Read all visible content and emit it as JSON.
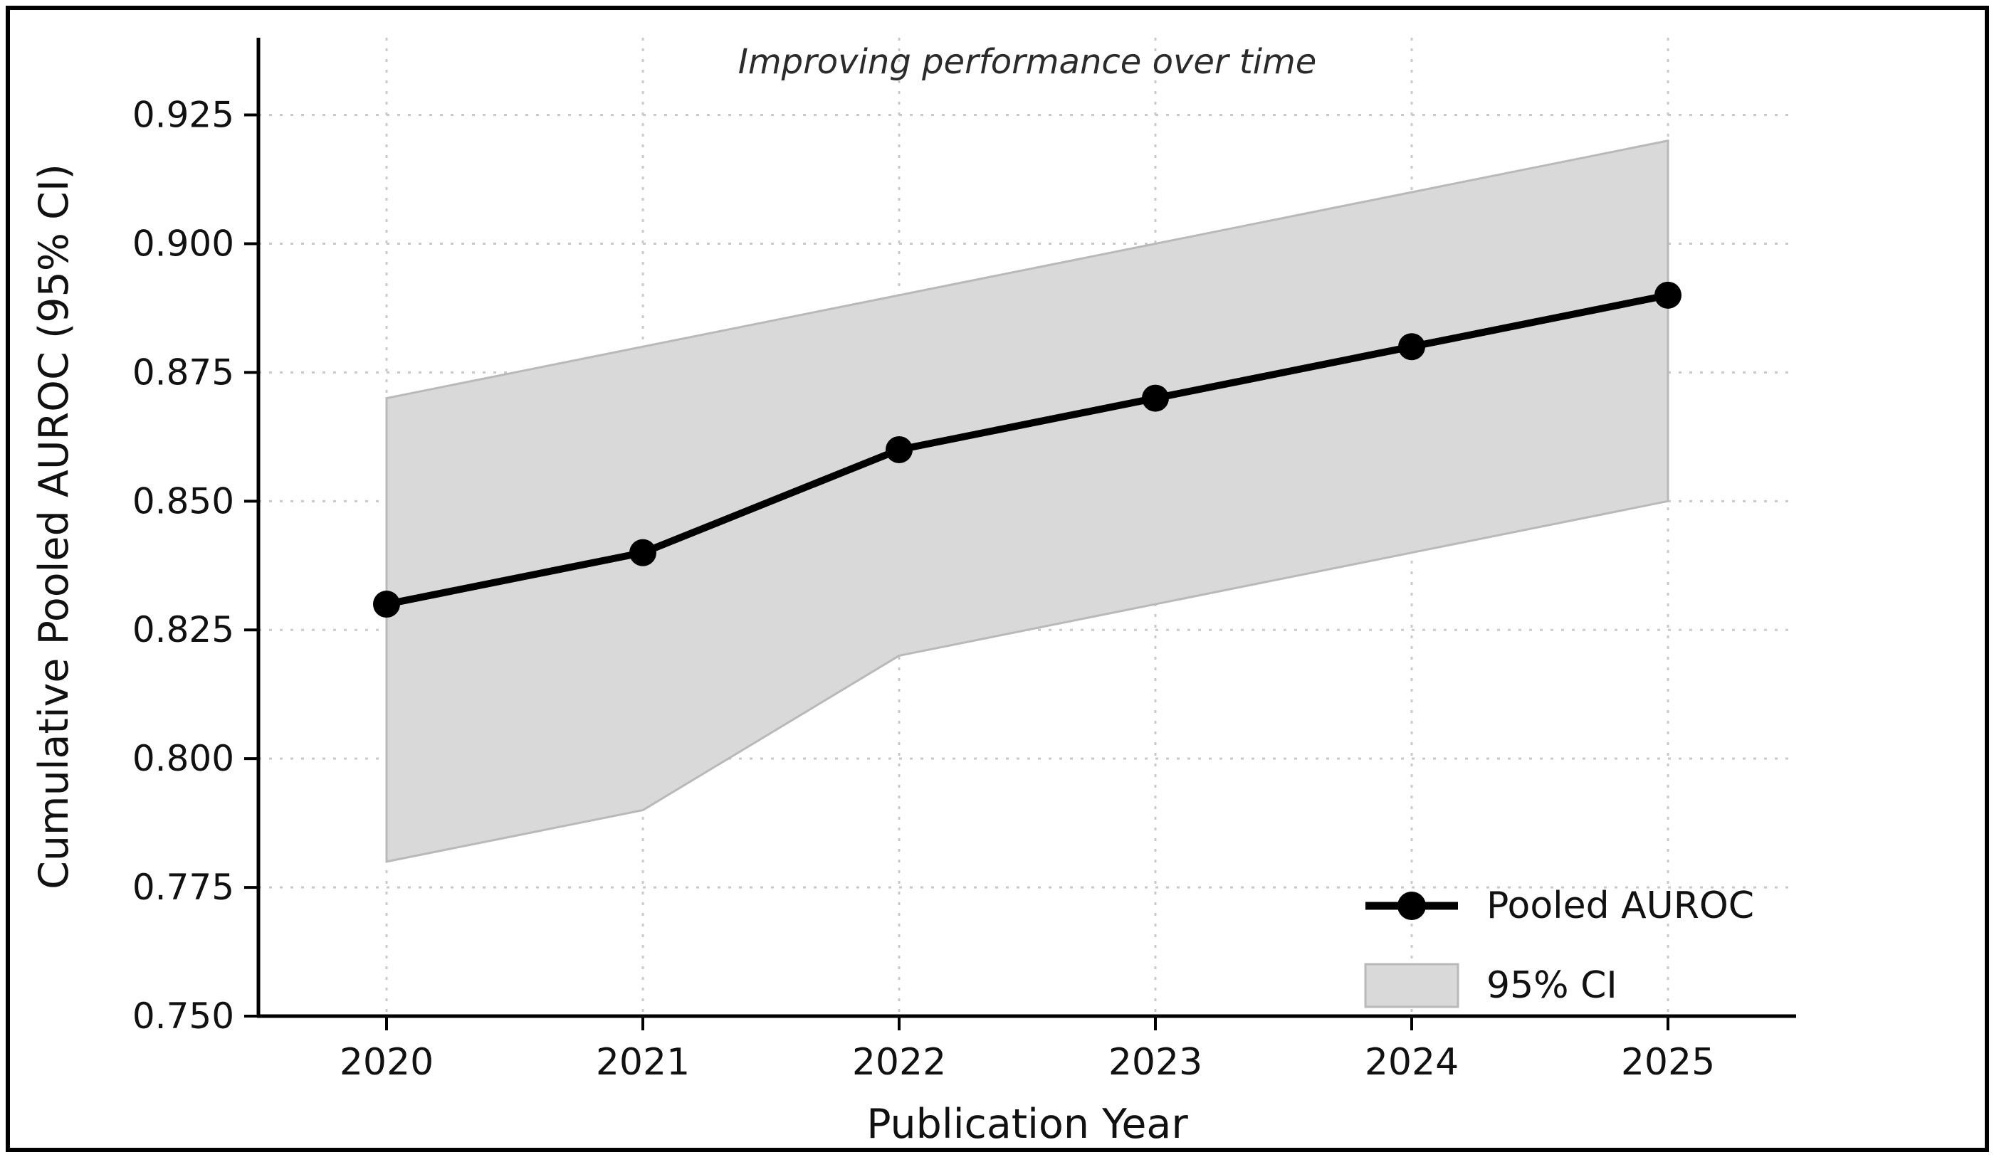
{
  "chart_data": {
    "type": "line",
    "title": "Improving performance over time",
    "xlabel": "Publication Year",
    "ylabel": "Cumulative Pooled AUROC (95% CI)",
    "x": [
      2020,
      2021,
      2022,
      2023,
      2024,
      2025
    ],
    "x_tick_labels": [
      "2020",
      "2021",
      "2022",
      "2023",
      "2024",
      "2025"
    ],
    "y_ticks": [
      0.75,
      0.775,
      0.8,
      0.825,
      0.85,
      0.875,
      0.9,
      0.925
    ],
    "y_tick_labels": [
      "0.750",
      "0.775",
      "0.800",
      "0.825",
      "0.850",
      "0.875",
      "0.900",
      "0.925"
    ],
    "xlim": [
      2019.5,
      2025.5
    ],
    "ylim": [
      0.75,
      0.94
    ],
    "grid": "dotted",
    "grid_color": "#c9c9c9",
    "axis_color": "#000000",
    "background": "#ffffff",
    "series": [
      {
        "name": "Pooled AUROC",
        "values": [
          0.83,
          0.84,
          0.86,
          0.87,
          0.88,
          0.89
        ],
        "color": "#000000",
        "marker": "circle"
      }
    ],
    "band": {
      "label": "95% CI",
      "lower": [
        0.78,
        0.79,
        0.82,
        0.83,
        0.84,
        0.85
      ],
      "upper": [
        0.87,
        0.88,
        0.89,
        0.9,
        0.91,
        0.92
      ],
      "fill": "#d9d9d9",
      "edge": "#b9b9b9"
    },
    "legend": {
      "position": "lower right",
      "frame": false
    }
  }
}
